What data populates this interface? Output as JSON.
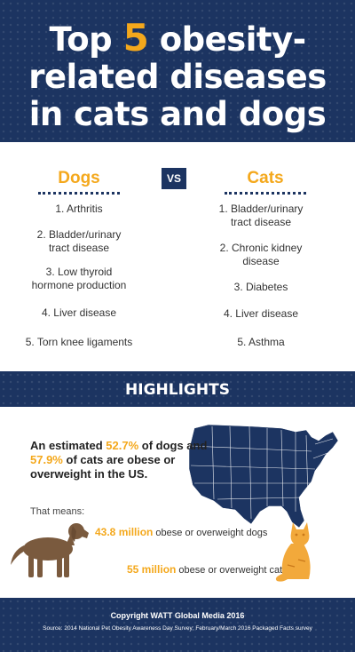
{
  "colors": {
    "navy": "#1c3461",
    "accent": "#f4a81c",
    "dog": "#7a5a3e",
    "cat": "#f2a93b"
  },
  "header": {
    "title_prefix": "Top",
    "title_number": "5",
    "title_rest_1": "obesity-",
    "title_line_2": "related diseases",
    "title_line_3": "in cats and dogs"
  },
  "compare": {
    "dogs_label": "Dogs",
    "vs_label": "VS",
    "cats_label": "Cats",
    "dogs": [
      "1. Arthritis",
      "2. Bladder/urinary tract disease",
      "3. Low thyroid hormone production",
      "4. Liver disease",
      "5. Torn knee ligaments"
    ],
    "cats": [
      "1. Bladder/urinary tract disease",
      "2. Chronic kidney disease",
      "3. Diabetes",
      "4. Liver disease",
      "5. Asthma"
    ]
  },
  "highlights": {
    "title": "HIGHLIGHTS",
    "stat_pre": "An estimated",
    "dog_pct": "52.7%",
    "stat_mid": "of dogs and",
    "cat_pct": "57.9%",
    "stat_post": "of cats are obese or overweight in the US.",
    "that_means": "That means:",
    "dog_count": "43.8 million",
    "dog_count_text": "obese or overweight dogs",
    "cat_count": "55 million",
    "cat_count_text": "obese or overweight cats",
    "map_icon": "us-map-icon",
    "dog_icon": "dog-silhouette-icon",
    "cat_icon": "cat-illustration-icon"
  },
  "footer": {
    "copyright": "Copyright WATT Global Media 2016",
    "source": "Source: 2014 National Pet Obesity Awareness Day Survey; February/March 2016 Packaged Facts survey"
  }
}
